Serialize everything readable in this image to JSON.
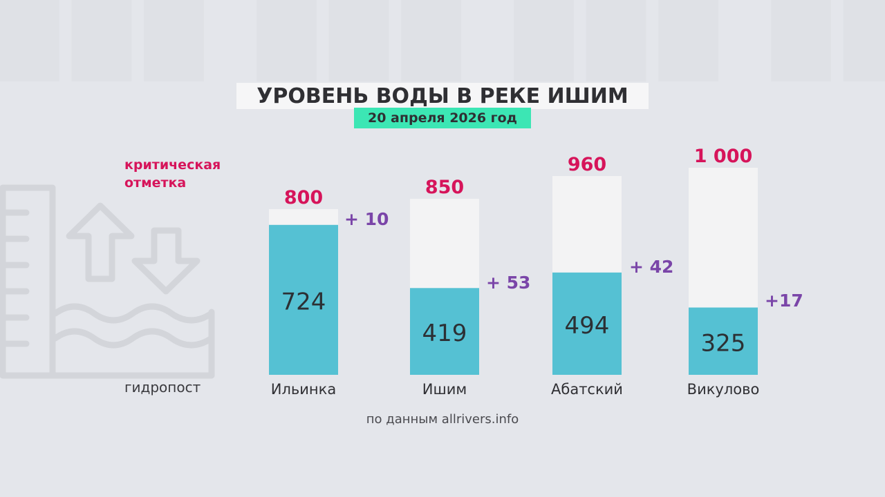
{
  "title": "УРОВЕНЬ ВОДЫ В РЕКЕ ИШИМ",
  "subtitle": "20 апреля 2026 год",
  "critical_label": "критическая отметка",
  "station_label": "гидропост",
  "source": "по данным allrivers.info",
  "icon": "water-level-gauge-icon",
  "colors": {
    "level": "#55c1d3",
    "critical_empty": "#f3f3f4",
    "critical_text": "#d6145a",
    "delta_text": "#7a45a8",
    "title_bg": "#f6f6f7",
    "subtitle_bg": "#3ce6b4",
    "background": "#e4e6eb"
  },
  "chart_data": {
    "type": "bar",
    "categories": [
      "Ильинка",
      "Ишим",
      "Абатский",
      "Викулово"
    ],
    "series": [
      {
        "values": [
          724,
          419,
          494,
          325
        ]
      },
      {
        "values": [
          800,
          850,
          960,
          1000
        ]
      },
      {
        "values": [
          10,
          53,
          42,
          17
        ]
      }
    ],
    "value_labels": [
      "724",
      "419",
      "494",
      "325"
    ],
    "critical_labels": [
      "800",
      "850",
      "960",
      "1 000"
    ],
    "delta_labels": [
      "+ 10",
      "+ 53",
      "+ 42",
      "+17"
    ],
    "ylim": [
      0,
      1000
    ],
    "grid": false,
    "legend": "none"
  }
}
